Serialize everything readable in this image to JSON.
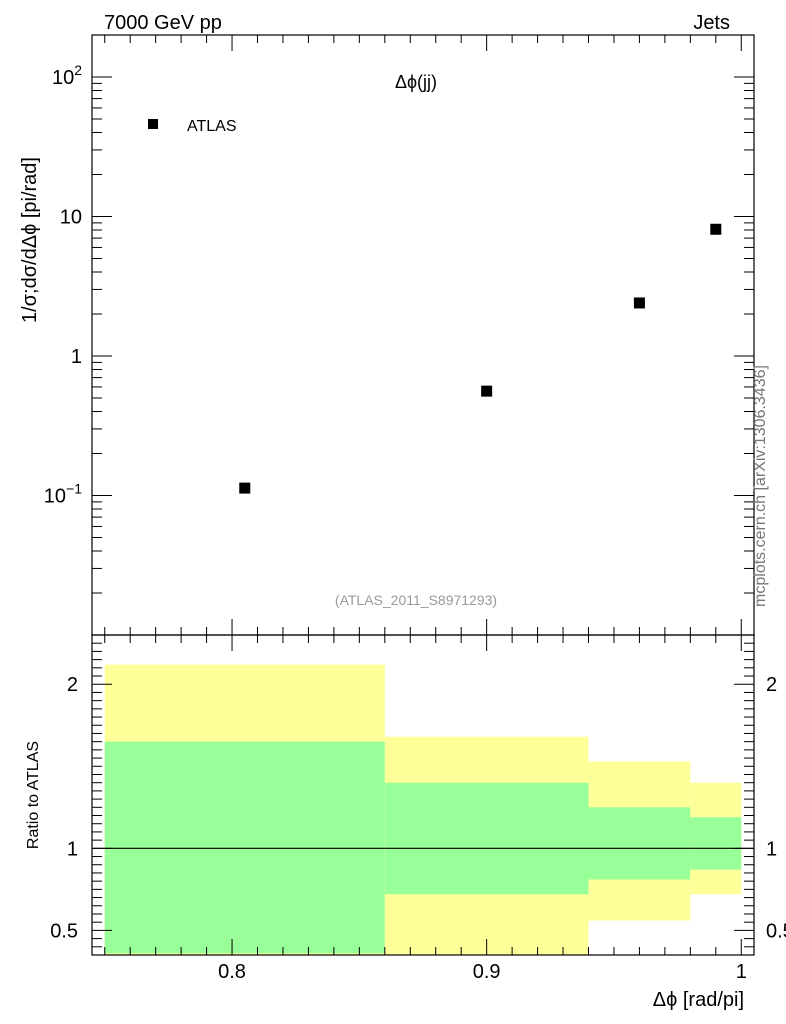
{
  "header": {
    "left": "7000 GeV pp",
    "right": "Jets"
  },
  "side_label": "mcplots.cern.ch [arXiv:1306.3436]",
  "colors": {
    "inner_band": "#99ff99",
    "outer_band": "#ffff99",
    "marker": "#000000"
  },
  "chart_data": [
    {
      "type": "scatter",
      "title": "Δϕ(jj)",
      "subtitle": "(ATLAS_2011_S8971293)",
      "ylabel": "1/σ;dσ/dΔϕ [pi/rad]",
      "yscale": "log",
      "ylim": [
        0.01,
        200
      ],
      "xlim": [
        0.745,
        1.005
      ],
      "legend": {
        "position": "top-left",
        "entries": [
          "ATLAS"
        ]
      },
      "series": [
        {
          "name": "ATLAS",
          "x": [
            0.805,
            0.9,
            0.96,
            0.99
          ],
          "y": [
            0.113,
            0.56,
            2.4,
            8.1
          ]
        }
      ],
      "yticks": [
        {
          "value": 0.1,
          "base": "10",
          "exp": "−1"
        },
        {
          "value": 1,
          "label": "1"
        },
        {
          "value": 10,
          "label": "10"
        },
        {
          "value": 100,
          "base": "10",
          "exp": "2"
        }
      ]
    },
    {
      "type": "area",
      "ylabel": "Ratio to ATLAS",
      "xlabel": "Δϕ [rad/pi]",
      "ylim": [
        0.35,
        2.3
      ],
      "xlim": [
        0.745,
        1.005
      ],
      "reference_line": 1,
      "bins": [
        {
          "x0": 0.75,
          "x1": 0.86,
          "inner": [
            0.36,
            1.65
          ],
          "outer": [
            0.33,
            2.12
          ]
        },
        {
          "x0": 0.86,
          "x1": 0.94,
          "inner": [
            0.72,
            1.4
          ],
          "outer": [
            0.33,
            1.68
          ]
        },
        {
          "x0": 0.94,
          "x1": 0.98,
          "inner": [
            0.81,
            1.25
          ],
          "outer": [
            0.56,
            1.53
          ]
        },
        {
          "x0": 0.98,
          "x1": 1.0,
          "inner": [
            0.87,
            1.19
          ],
          "outer": [
            0.72,
            1.4
          ]
        }
      ],
      "xticks": [
        {
          "value": 0.8,
          "label": "0.8"
        },
        {
          "value": 0.9,
          "label": "0.9"
        },
        {
          "value": 1.0,
          "label": "1"
        }
      ],
      "yticks": [
        {
          "value": 0.5,
          "label": "0.5"
        },
        {
          "value": 1,
          "label": "1"
        },
        {
          "value": 2,
          "label": "2"
        }
      ]
    }
  ]
}
